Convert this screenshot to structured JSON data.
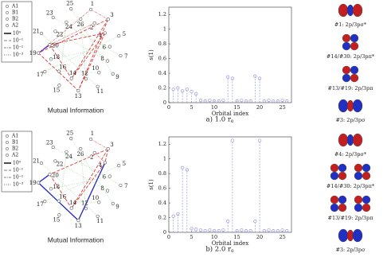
{
  "captions": [
    "a) 1.0 r",
    "b) 2.0 r"
  ],
  "caption_subscript": "e",
  "mutual_information": [
    {
      "title": "Mutual Information",
      "markers": [
        "A1",
        "B1",
        "B2",
        "A2"
      ],
      "levels": [
        {
          "value": 1,
          "label": "10⁰",
          "color": "#2222cc"
        },
        {
          "value": 0.1,
          "label": "10⁻¹",
          "color": "#dd2222"
        },
        {
          "value": 0.01,
          "label": "10⁻²",
          "color": "#dd8888"
        },
        {
          "value": 0.001,
          "label": "10⁻³",
          "color": "#8fd08f"
        }
      ],
      "nodes": [
        "25",
        "26",
        "1",
        "2",
        "3",
        "4",
        "5",
        "6",
        "7",
        "8",
        "9",
        "10",
        "11",
        "12",
        "13",
        "14",
        "15",
        "16",
        "17",
        "18",
        "19",
        "20",
        "21",
        "22",
        "23",
        "24"
      ],
      "links": [
        {
          "from": "19",
          "to": "20",
          "value": 1
        },
        {
          "from": "3",
          "to": "19",
          "value": 0.1
        },
        {
          "from": "4",
          "to": "20",
          "value": 0.1
        },
        {
          "from": "3",
          "to": "13",
          "value": 0.1
        },
        {
          "from": "4",
          "to": "14",
          "value": 0.1
        },
        {
          "from": "19",
          "to": "13",
          "value": 0.1
        },
        {
          "from": "20",
          "to": "14",
          "value": 0.1
        },
        {
          "from": "3",
          "to": "14",
          "value": 0.1
        },
        {
          "from": "4",
          "to": "13",
          "value": 0.1
        },
        {
          "from": "1",
          "to": "3",
          "value": 0.01
        },
        {
          "from": "19",
          "to": "1",
          "value": 0.01
        },
        {
          "from": "2",
          "to": "20",
          "value": 0.01
        },
        {
          "from": "25",
          "to": "9",
          "value": 0.001
        },
        {
          "from": "23",
          "to": "7",
          "value": 0.001
        },
        {
          "from": "21",
          "to": "11",
          "value": 0.001
        },
        {
          "from": "17",
          "to": "5",
          "value": 0.001
        },
        {
          "from": "15",
          "to": "24",
          "value": 0.001
        },
        {
          "from": "26",
          "to": "12",
          "value": 0.001
        },
        {
          "from": "22",
          "to": "8",
          "value": 0.001
        },
        {
          "from": "18",
          "to": "6",
          "value": 0.001
        },
        {
          "from": "16",
          "to": "10",
          "value": 0.001
        }
      ]
    },
    {
      "title": "Mutual Information",
      "markers": [
        "A1",
        "B1",
        "B2",
        "A2"
      ],
      "levels": [
        {
          "value": 1,
          "label": "10⁰",
          "color": "#2222cc"
        },
        {
          "value": 0.1,
          "label": "10⁻¹",
          "color": "#dd2222"
        },
        {
          "value": 0.01,
          "label": "10⁻²",
          "color": "#dd8888"
        },
        {
          "value": 0.001,
          "label": "10⁻³",
          "color": "#8fd08f"
        }
      ],
      "nodes": [
        "25",
        "26",
        "1",
        "2",
        "3",
        "4",
        "5",
        "6",
        "7",
        "8",
        "9",
        "10",
        "11",
        "12",
        "13",
        "14",
        "15",
        "16",
        "17",
        "18",
        "19",
        "20",
        "21",
        "22",
        "23",
        "24"
      ],
      "links": [
        {
          "from": "19",
          "to": "13",
          "value": 1
        },
        {
          "from": "4",
          "to": "13",
          "value": 1
        },
        {
          "from": "19",
          "to": "20",
          "value": 1
        },
        {
          "from": "3",
          "to": "20",
          "value": 0.1
        },
        {
          "from": "4",
          "to": "14",
          "value": 0.1
        },
        {
          "from": "3",
          "to": "14",
          "value": 0.1
        },
        {
          "from": "20",
          "to": "14",
          "value": 0.1
        },
        {
          "from": "3",
          "to": "4",
          "value": 0.1
        },
        {
          "from": "1",
          "to": "3",
          "value": 0.01
        },
        {
          "from": "2",
          "to": "4",
          "value": 0.01
        },
        {
          "from": "25",
          "to": "9",
          "value": 0.001
        },
        {
          "from": "23",
          "to": "7",
          "value": 0.001
        },
        {
          "from": "21",
          "to": "11",
          "value": 0.001
        },
        {
          "from": "17",
          "to": "5",
          "value": 0.001
        },
        {
          "from": "15",
          "to": "24",
          "value": 0.001
        },
        {
          "from": "26",
          "to": "12",
          "value": 0.001
        },
        {
          "from": "22",
          "to": "8",
          "value": 0.001
        },
        {
          "from": "18",
          "to": "6",
          "value": 0.001
        },
        {
          "from": "16",
          "to": "10",
          "value": 0.001
        }
      ]
    }
  ],
  "chart_data": [
    {
      "type": "stem",
      "ylabel": "s(1)",
      "xlabel": "Orbital index",
      "color": "#9a9ae0",
      "x": [
        1,
        2,
        3,
        4,
        5,
        6,
        7,
        8,
        9,
        10,
        11,
        12,
        13,
        14,
        15,
        16,
        17,
        18,
        19,
        20,
        21,
        22,
        23,
        24,
        25,
        26
      ],
      "values": [
        0.18,
        0.2,
        0.16,
        0.18,
        0.15,
        0.12,
        0.03,
        0.02,
        0.03,
        0.02,
        0.02,
        0.03,
        0.35,
        0.33,
        0.02,
        0.03,
        0.02,
        0.02,
        0.36,
        0.33,
        0.02,
        0.03,
        0.02,
        0.02,
        0.03,
        0.02
      ],
      "xlim": [
        0,
        27
      ],
      "xticks": [
        0,
        5,
        10,
        15,
        20,
        25
      ],
      "ylim": [
        0,
        1.3
      ],
      "yticks": [
        0,
        0.2,
        0.4,
        0.6,
        0.8,
        1,
        1.2
      ]
    },
    {
      "type": "stem",
      "ylabel": "s(1)",
      "xlabel": "Orbital index",
      "color": "#9a9ae0",
      "x": [
        1,
        2,
        3,
        4,
        5,
        6,
        7,
        8,
        9,
        10,
        11,
        12,
        13,
        14,
        15,
        16,
        17,
        18,
        19,
        20,
        21,
        22,
        23,
        24,
        25,
        26
      ],
      "values": [
        0.22,
        0.25,
        0.88,
        0.85,
        0.05,
        0.04,
        0.03,
        0.02,
        0.03,
        0.02,
        0.02,
        0.03,
        0.15,
        1.25,
        0.02,
        0.03,
        0.02,
        0.02,
        0.15,
        1.25,
        0.02,
        0.03,
        0.02,
        0.02,
        0.03,
        0.02
      ],
      "xlim": [
        0,
        27
      ],
      "xticks": [
        0,
        5,
        10,
        15,
        20,
        25
      ],
      "ylim": [
        0,
        1.3
      ],
      "yticks": [
        0,
        0.2,
        0.4,
        0.6,
        0.8,
        1,
        1.2
      ]
    }
  ],
  "orbitals": [
    [
      "#1: 2p/3pσ*",
      "#14/#30: 2p/3pπ*",
      "#13/#19: 2p/3pπ",
      "#3: 2p/3pσ"
    ],
    [
      "#4: 2p/3pσ*",
      "#14/#30: 2p/3pπ*",
      "#13/#19: 2p/3pπ",
      "#3: 2p/3pσ"
    ]
  ]
}
